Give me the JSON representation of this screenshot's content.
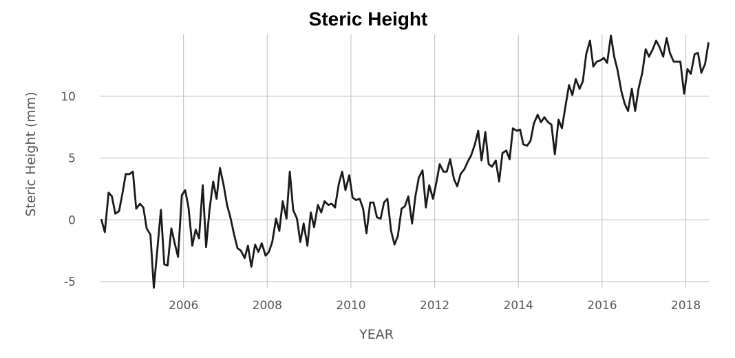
{
  "chart_data": {
    "type": "line",
    "title": "Steric Height",
    "xlabel": "YEAR",
    "ylabel": "Steric Height (mm)",
    "xlim": [
      2004.0,
      2018.55
    ],
    "ylim": [
      -5.5,
      15
    ],
    "x_ticks": [
      2006,
      2008,
      2010,
      2012,
      2014,
      2016,
      2018
    ],
    "x_tick_labels": [
      "2006",
      "2008",
      "2010",
      "2012",
      "2014",
      "2016",
      "2018"
    ],
    "y_ticks": [
      -5,
      0,
      5,
      10
    ],
    "y_tick_labels": [
      "-5",
      "0",
      "5",
      "10"
    ],
    "grid": true,
    "legend": "none",
    "series_color": "#1a1a1a",
    "series": [
      {
        "x": [
          2004.04,
          2004.12,
          2004.21,
          2004.29,
          2004.37,
          2004.46,
          2004.54,
          2004.62,
          2004.71,
          2004.79,
          2004.87,
          2004.96,
          2005.04,
          2005.12,
          2005.21,
          2005.29,
          2005.37,
          2005.46,
          2005.54,
          2005.62,
          2005.71,
          2005.79,
          2005.87,
          2005.96,
          2006.04,
          2006.12,
          2006.21,
          2006.29,
          2006.37,
          2006.46,
          2006.54,
          2006.62,
          2006.71,
          2006.79,
          2006.87,
          2006.96,
          2007.04,
          2007.12,
          2007.21,
          2007.29,
          2007.37,
          2007.46,
          2007.54,
          2007.62,
          2007.71,
          2007.79,
          2007.87,
          2007.96,
          2008.04,
          2008.12,
          2008.21,
          2008.29,
          2008.37,
          2008.46,
          2008.54,
          2008.62,
          2008.71,
          2008.79,
          2008.87,
          2008.96,
          2009.04,
          2009.12,
          2009.21,
          2009.29,
          2009.37,
          2009.46,
          2009.54,
          2009.62,
          2009.71,
          2009.79,
          2009.87,
          2009.96,
          2010.04,
          2010.12,
          2010.21,
          2010.29,
          2010.37,
          2010.46,
          2010.54,
          2010.62,
          2010.71,
          2010.79,
          2010.87,
          2010.96,
          2011.04,
          2011.12,
          2011.21,
          2011.29,
          2011.37,
          2011.46,
          2011.54,
          2011.62,
          2011.71,
          2011.79,
          2011.87,
          2011.96,
          2012.04,
          2012.12,
          2012.21,
          2012.29,
          2012.37,
          2012.46,
          2012.54,
          2012.62,
          2012.71,
          2012.79,
          2012.87,
          2012.96,
          2013.04,
          2013.12,
          2013.21,
          2013.29,
          2013.37,
          2013.46,
          2013.54,
          2013.62,
          2013.71,
          2013.79,
          2013.87,
          2013.96,
          2014.04,
          2014.12,
          2014.21,
          2014.29,
          2014.37,
          2014.46,
          2014.54,
          2014.62,
          2014.71,
          2014.79,
          2014.87,
          2014.96,
          2015.04,
          2015.12,
          2015.21,
          2015.29,
          2015.37,
          2015.46,
          2015.54,
          2015.62,
          2015.71,
          2015.79,
          2015.87,
          2015.96,
          2016.04,
          2016.12,
          2016.21,
          2016.29,
          2016.37,
          2016.46,
          2016.54,
          2016.62,
          2016.71,
          2016.79,
          2016.87,
          2016.96,
          2017.04,
          2017.12,
          2017.21,
          2017.29,
          2017.37,
          2017.46,
          2017.54,
          2017.62,
          2017.71,
          2017.79,
          2017.87,
          2017.96,
          2018.04,
          2018.12,
          2018.21,
          2018.29,
          2018.37,
          2018.46,
          2018.54
        ],
        "values": [
          0.0,
          -1.0,
          2.2,
          1.9,
          0.5,
          0.7,
          2.1,
          3.7,
          3.7,
          3.9,
          0.9,
          1.3,
          1.0,
          -0.7,
          -1.2,
          -5.5,
          -2.6,
          0.8,
          -3.6,
          -3.7,
          -0.7,
          -1.9,
          -3.0,
          2.0,
          2.4,
          1.0,
          -2.1,
          -0.8,
          -1.5,
          2.8,
          -2.2,
          0.8,
          3.1,
          1.7,
          4.2,
          2.8,
          1.2,
          0.2,
          -1.2,
          -2.3,
          -2.5,
          -3.1,
          -2.1,
          -3.8,
          -2.0,
          -2.6,
          -1.9,
          -2.9,
          -2.6,
          -1.8,
          0.1,
          -0.9,
          1.5,
          0.1,
          3.9,
          0.8,
          0.1,
          -1.8,
          -0.3,
          -2.1,
          0.6,
          -0.6,
          1.2,
          0.6,
          1.5,
          1.2,
          1.3,
          1.0,
          2.9,
          3.9,
          2.4,
          3.6,
          1.8,
          1.6,
          1.7,
          0.9,
          -1.1,
          1.4,
          1.4,
          0.2,
          0.1,
          1.4,
          1.7,
          -0.9,
          -2.0,
          -1.3,
          0.9,
          1.1,
          1.9,
          -0.3,
          1.9,
          3.4,
          4.0,
          1.0,
          2.8,
          1.7,
          3.0,
          4.5,
          3.9,
          3.9,
          4.9,
          3.3,
          2.7,
          3.7,
          4.1,
          4.7,
          5.2,
          6.1,
          7.2,
          4.8,
          7.1,
          4.5,
          4.3,
          4.8,
          3.1,
          5.4,
          5.6,
          4.9,
          7.4,
          7.2,
          7.3,
          6.1,
          6.0,
          6.4,
          7.8,
          8.5,
          7.9,
          8.3,
          7.9,
          7.7,
          5.3,
          8.1,
          7.4,
          9.1,
          10.9,
          10.1,
          11.4,
          10.6,
          11.2,
          13.4,
          14.5,
          12.4,
          12.8,
          12.9,
          13.1,
          12.7,
          14.9,
          13.2,
          12.1,
          10.4,
          9.4,
          8.8,
          10.6,
          8.8,
          10.6,
          11.9,
          13.8,
          13.2,
          13.8,
          14.5,
          14.0,
          13.2,
          14.7,
          13.5,
          12.8,
          12.8,
          12.8,
          10.2,
          12.2,
          11.8,
          13.4,
          13.5,
          11.9,
          12.6,
          14.3
        ]
      }
    ]
  }
}
